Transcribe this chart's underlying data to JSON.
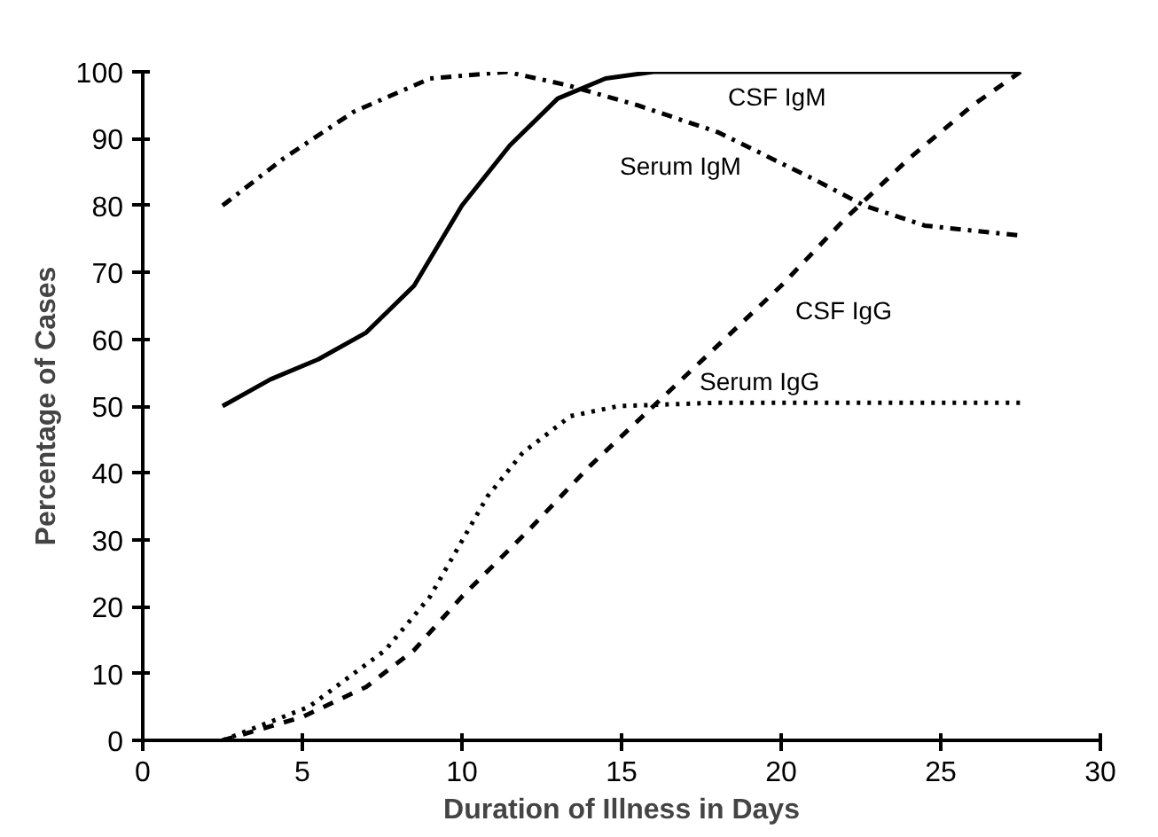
{
  "chart_data": {
    "type": "line",
    "xlabel": "Duration of Illness in Days",
    "ylabel": "Percentage of Cases",
    "xlim": [
      0,
      30
    ],
    "ylim": [
      0,
      100
    ],
    "xticks": [
      0,
      5,
      10,
      15,
      20,
      25,
      30
    ],
    "yticks": [
      0,
      10,
      20,
      30,
      40,
      50,
      60,
      70,
      80,
      90,
      100
    ],
    "grid": false,
    "series": [
      {
        "name": "CSF IgM",
        "color": "#000000",
        "line_style": "solid",
        "x": [
          2.5,
          4,
          5.5,
          7,
          8.5,
          10,
          11.5,
          13,
          14.5,
          16,
          20,
          27.5
        ],
        "values": [
          50,
          54,
          57,
          61,
          68,
          80,
          89,
          96,
          99,
          100,
          100,
          100
        ]
      },
      {
        "name": "Serum IgM",
        "color": "#000000",
        "line_style": "dashdot",
        "x": [
          2.5,
          4.4,
          6.6,
          9,
          11.4,
          13.3,
          15.5,
          18,
          21,
          22.6,
          24.5,
          27.5
        ],
        "values": [
          80,
          87,
          94,
          99,
          100,
          98,
          95,
          91,
          84,
          80,
          77,
          75.5
        ]
      },
      {
        "name": "CSF IgG",
        "color": "#000000",
        "line_style": "dashed",
        "x": [
          2.5,
          5,
          7,
          8.5,
          10,
          12,
          14,
          16,
          18,
          20,
          22,
          24,
          26,
          27.5
        ],
        "values": [
          0,
          3.5,
          8,
          13.5,
          21.5,
          31,
          41,
          50,
          59,
          68,
          78,
          87,
          95,
          100
        ]
      },
      {
        "name": "Serum IgG",
        "color": "#000000",
        "line_style": "dotted",
        "x": [
          2.5,
          5.2,
          7.6,
          9,
          9.9,
          10.8,
          11.9,
          13.4,
          14.9,
          18,
          27.5
        ],
        "values": [
          0,
          5,
          13.5,
          21.5,
          29,
          36.5,
          43,
          48.5,
          50,
          50.5,
          50.5
        ]
      }
    ]
  }
}
